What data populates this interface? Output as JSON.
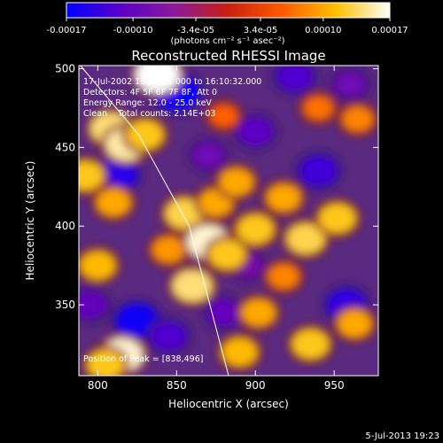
{
  "colorbar": {
    "tick_labels": [
      "-0.00017",
      "-0.00010",
      "-3.4e-05",
      "3.4e-05",
      "0.00010",
      "0.00017"
    ],
    "tick_values": [
      -0.00017,
      -0.0001,
      -3.4e-05,
      3.4e-05,
      0.0001,
      0.00017
    ],
    "range": [
      -0.00017,
      0.00017
    ],
    "unit_label": "(photons cm⁻² s⁻¹ asec⁻²)",
    "colors": [
      "#0000ff",
      "#5a00c8",
      "#8a1a9a",
      "#c82010",
      "#ff5a00",
      "#ffc000",
      "#ffffff"
    ]
  },
  "chart_data": {
    "type": "heatmap",
    "title": "Reconstructed RHESSI Image",
    "xlabel": "Heliocentric X (arcsec)",
    "ylabel": "Heliocentric Y (arcsec)",
    "xlim": [
      788,
      978
    ],
    "ylim": [
      305,
      502
    ],
    "x_ticks": [
      800,
      850,
      900,
      950
    ],
    "y_ticks": [
      350,
      400,
      450,
      500
    ],
    "annotations": [
      "17-Jul-2002 16:04:56.000 to 16:10:32.000",
      "Detectors: 4F 5F 6F 7F 8F, Att 0",
      "Energy Range: 12.0 - 25.0 keV",
      "Clean    Total counts: 2.14E+03"
    ],
    "peak_label": "Position of Peak = [838,496]",
    "limb_line": {
      "x": [
        789,
        826,
        858,
        883
      ],
      "y": [
        502,
        458,
        400,
        305
      ]
    },
    "hot_spots": [
      {
        "x": 838,
        "y": 496,
        "value": 0.00017
      },
      {
        "x": 808,
        "y": 462,
        "value": 0.00014
      },
      {
        "x": 818,
        "y": 452,
        "value": 0.00015
      },
      {
        "x": 830,
        "y": 458,
        "value": 0.00012
      },
      {
        "x": 855,
        "y": 408,
        "value": 0.00013
      },
      {
        "x": 875,
        "y": 415,
        "value": 0.0001
      },
      {
        "x": 845,
        "y": 385,
        "value": 9e-05
      },
      {
        "x": 870,
        "y": 390,
        "value": 0.00016
      },
      {
        "x": 882,
        "y": 382,
        "value": 0.00012
      },
      {
        "x": 800,
        "y": 375,
        "value": 0.00011
      },
      {
        "x": 810,
        "y": 415,
        "value": 0.0001
      },
      {
        "x": 792,
        "y": 432,
        "value": 0.00012
      },
      {
        "x": 860,
        "y": 362,
        "value": 0.00014
      },
      {
        "x": 815,
        "y": 318,
        "value": 0.00016
      },
      {
        "x": 805,
        "y": 312,
        "value": 0.00012
      },
      {
        "x": 890,
        "y": 320,
        "value": 0.00011
      },
      {
        "x": 902,
        "y": 345,
        "value": 0.0001
      },
      {
        "x": 935,
        "y": 325,
        "value": 0.00012
      },
      {
        "x": 963,
        "y": 338,
        "value": 0.0001
      },
      {
        "x": 900,
        "y": 398,
        "value": 0.00012
      },
      {
        "x": 932,
        "y": 392,
        "value": 0.00013
      },
      {
        "x": 952,
        "y": 405,
        "value": 0.00012
      },
      {
        "x": 918,
        "y": 418,
        "value": 0.0001
      },
      {
        "x": 888,
        "y": 428,
        "value": 0.0001
      },
      {
        "x": 965,
        "y": 468,
        "value": 8e-05
      },
      {
        "x": 940,
        "y": 475,
        "value": 7e-05
      },
      {
        "x": 880,
        "y": 470,
        "value": 6e-05
      },
      {
        "x": 918,
        "y": 368,
        "value": 8e-05
      }
    ],
    "cold_spots": [
      {
        "x": 850,
        "y": 485,
        "value": -0.00017
      },
      {
        "x": 812,
        "y": 433,
        "value": -0.00015
      },
      {
        "x": 825,
        "y": 340,
        "value": -0.00016
      },
      {
        "x": 845,
        "y": 330,
        "value": -0.00012
      },
      {
        "x": 940,
        "y": 435,
        "value": -0.00013
      },
      {
        "x": 958,
        "y": 350,
        "value": -0.00014
      },
      {
        "x": 900,
        "y": 460,
        "value": -0.00011
      },
      {
        "x": 925,
        "y": 495,
        "value": -0.00012
      },
      {
        "x": 880,
        "y": 345,
        "value": -0.0001
      },
      {
        "x": 870,
        "y": 445,
        "value": -9e-05
      },
      {
        "x": 960,
        "y": 490,
        "value": -9e-05
      },
      {
        "x": 795,
        "y": 350,
        "value": -0.0001
      },
      {
        "x": 895,
        "y": 375,
        "value": -8e-05
      }
    ]
  },
  "footer": {
    "timestamp": "5-Jul-2013 19:23"
  }
}
